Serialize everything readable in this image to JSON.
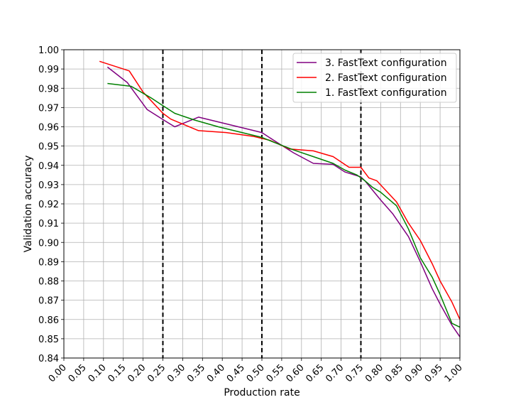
{
  "chart_data": {
    "type": "line",
    "title": "",
    "xlabel": "Production rate",
    "ylabel": "Validation accuracy",
    "xlim": [
      0.0,
      1.0
    ],
    "ylim": [
      0.84,
      1.0
    ],
    "x_ticks": [
      "0.00",
      "0.05",
      "0.10",
      "0.15",
      "0.20",
      "0.25",
      "0.30",
      "0.35",
      "0.40",
      "0.45",
      "0.50",
      "0.55",
      "0.60",
      "0.65",
      "0.70",
      "0.75",
      "0.80",
      "0.85",
      "0.90",
      "0.95",
      "1.00"
    ],
    "y_ticks": [
      "0.84",
      "0.85",
      "0.86",
      "0.87",
      "0.88",
      "0.89",
      "0.90",
      "0.91",
      "0.92",
      "0.93",
      "0.94",
      "0.95",
      "0.96",
      "0.97",
      "0.98",
      "0.99",
      "1.00"
    ],
    "grid": true,
    "legend_position": "top-right",
    "vertical_lines": [
      0.25,
      0.5,
      0.75
    ],
    "vertical_line_color": "#000000",
    "series": [
      {
        "name": "3. FastText configuration",
        "color": "#800080",
        "x": [
          0.11,
          0.16,
          0.21,
          0.26,
          0.28,
          0.34,
          0.41,
          0.48,
          0.5,
          0.53,
          0.58,
          0.63,
          0.68,
          0.71,
          0.75,
          0.76,
          0.78,
          0.8,
          0.83,
          0.87,
          0.9,
          0.93,
          0.95,
          0.98,
          1.0
        ],
        "y": [
          0.991,
          0.983,
          0.969,
          0.9625,
          0.96,
          0.965,
          0.9615,
          0.958,
          0.957,
          0.953,
          0.9465,
          0.941,
          0.9405,
          0.9365,
          0.934,
          0.932,
          0.927,
          0.922,
          0.915,
          0.903,
          0.89,
          0.876,
          0.868,
          0.857,
          0.851
        ]
      },
      {
        "name": "2. FastText configuration",
        "color": "#ff0000",
        "x": [
          0.09,
          0.165,
          0.2,
          0.25,
          0.27,
          0.34,
          0.41,
          0.48,
          0.52,
          0.57,
          0.63,
          0.68,
          0.72,
          0.75,
          0.77,
          0.79,
          0.84,
          0.87,
          0.9,
          0.93,
          0.95,
          0.98,
          1.0
        ],
        "y": [
          0.994,
          0.989,
          0.978,
          0.967,
          0.964,
          0.958,
          0.957,
          0.955,
          0.953,
          0.9485,
          0.9475,
          0.9445,
          0.939,
          0.939,
          0.9335,
          0.932,
          0.921,
          0.91,
          0.901,
          0.889,
          0.88,
          0.869,
          0.86
        ]
      },
      {
        "name": "1. FastText configuration",
        "color": "#008000",
        "x": [
          0.11,
          0.17,
          0.22,
          0.25,
          0.28,
          0.33,
          0.39,
          0.46,
          0.5,
          0.53,
          0.58,
          0.63,
          0.68,
          0.71,
          0.74,
          0.76,
          0.78,
          0.8,
          0.84,
          0.87,
          0.9,
          0.93,
          0.95,
          0.98,
          1.0
        ],
        "y": [
          0.9825,
          0.981,
          0.975,
          0.971,
          0.967,
          0.9635,
          0.96,
          0.9565,
          0.9545,
          0.952,
          0.948,
          0.9445,
          0.941,
          0.9375,
          0.935,
          0.932,
          0.9285,
          0.926,
          0.919,
          0.907,
          0.892,
          0.882,
          0.873,
          0.858,
          0.856
        ]
      }
    ]
  }
}
